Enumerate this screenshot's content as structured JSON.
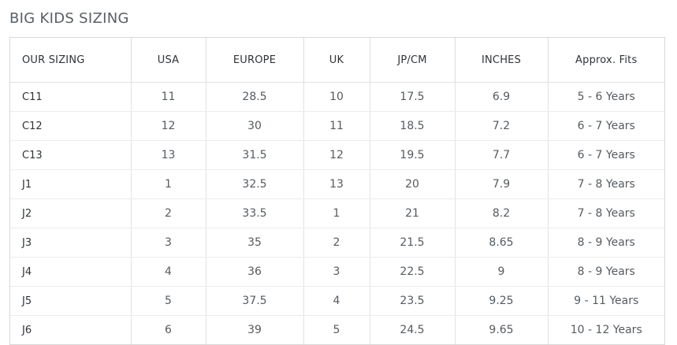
{
  "title": "BIG KIDS SIZING",
  "headers": [
    "OUR SIZING",
    "USA",
    "EUROPE",
    "UK",
    "JP/CM",
    "INCHES",
    "Approx. Fits"
  ],
  "rows": [
    [
      "C11",
      "11",
      "28.5",
      "10",
      "17.5",
      "6.9",
      "5 - 6 Years"
    ],
    [
      "C12",
      "12",
      "30",
      "11",
      "18.5",
      "7.2",
      "6 - 7 Years"
    ],
    [
      "C13",
      "13",
      "31.5",
      "12",
      "19.5",
      "7.7",
      "6 - 7 Years"
    ],
    [
      "J1",
      "1",
      "32.5",
      "13",
      "20",
      "7.9",
      "7 - 8 Years"
    ],
    [
      "J2",
      "2",
      "33.5",
      "1",
      "21",
      "8.2",
      "7 - 8 Years"
    ],
    [
      "J3",
      "3",
      "35",
      "2",
      "21.5",
      "8.65",
      "8 - 9 Years"
    ],
    [
      "J4",
      "4",
      "36",
      "3",
      "22.5",
      "9",
      "8 - 9 Years"
    ],
    [
      "J5",
      "5",
      "37.5",
      "4",
      "23.5",
      "9.25",
      "9 - 11 Years"
    ],
    [
      "J6",
      "6",
      "39",
      "5",
      "24.5",
      "9.65",
      "10 - 12 Years"
    ]
  ]
}
